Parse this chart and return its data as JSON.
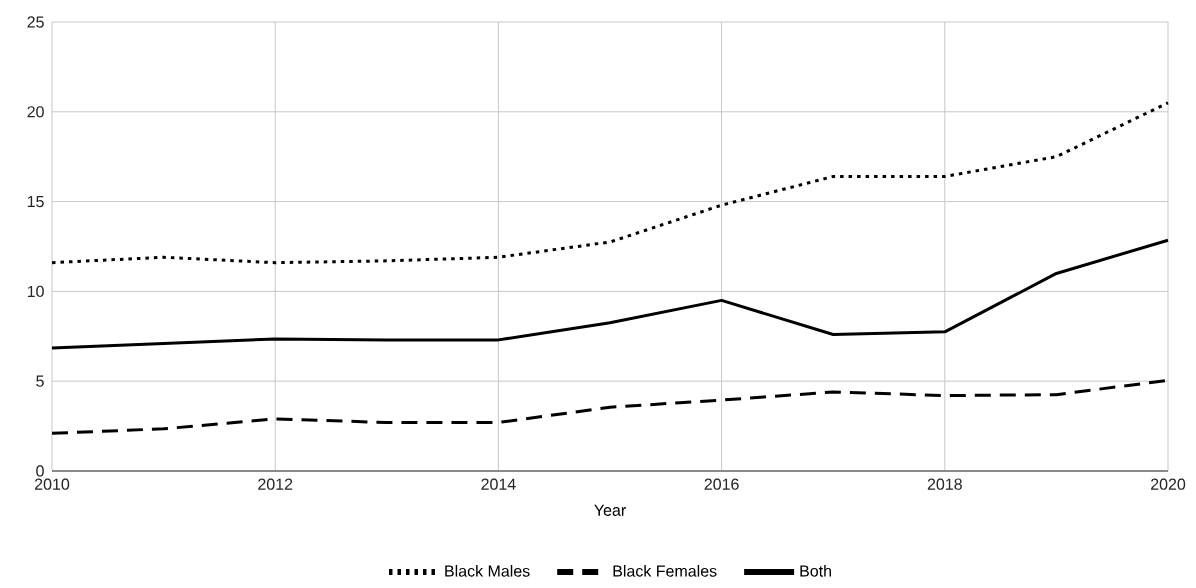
{
  "chart_data": {
    "type": "line",
    "xlabel": "Year",
    "x": [
      2010,
      2011,
      2012,
      2013,
      2014,
      2015,
      2016,
      2017,
      2018,
      2019,
      2020
    ],
    "xlim": [
      2010,
      2020
    ],
    "xticks": [
      2010,
      2012,
      2014,
      2016,
      2018,
      2020
    ],
    "ylim": [
      0,
      25
    ],
    "yticks": [
      0,
      5,
      10,
      15,
      20,
      25
    ],
    "grid": true,
    "legend": "bottom",
    "series": [
      {
        "name": "Black Males",
        "color": "#000000",
        "line_style": "dotted",
        "values": [
          11.6,
          11.9,
          11.6,
          11.7,
          11.9,
          12.75,
          14.8,
          16.4,
          16.4,
          17.5,
          20.5
        ]
      },
      {
        "name": "Black Females",
        "color": "#000000",
        "line_style": "dashed",
        "values": [
          2.1,
          2.35,
          2.9,
          2.7,
          2.7,
          3.55,
          3.95,
          4.4,
          4.2,
          4.25,
          5.05
        ]
      },
      {
        "name": "Both",
        "color": "#000000",
        "line_style": "solid",
        "values": [
          6.85,
          7.1,
          7.35,
          7.3,
          7.3,
          8.25,
          9.5,
          7.6,
          7.75,
          11.0,
          12.85
        ]
      }
    ]
  }
}
